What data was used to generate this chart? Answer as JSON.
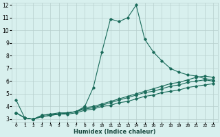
{
  "xlabel": "Humidex (Indice chaleur)",
  "xlim": [
    -0.5,
    23.5
  ],
  "ylim": [
    2.8,
    12.2
  ],
  "yticks": [
    3,
    4,
    5,
    6,
    7,
    8,
    9,
    10,
    11,
    12
  ],
  "xticks": [
    0,
    1,
    2,
    3,
    4,
    5,
    6,
    7,
    8,
    9,
    10,
    11,
    12,
    13,
    14,
    15,
    16,
    17,
    18,
    19,
    20,
    21,
    22,
    23
  ],
  "line_color": "#1a6b5a",
  "bg_color": "#d8f0ee",
  "grid_color": "#b8d0ce",
  "series": [
    {
      "x": [
        0,
        1,
        2,
        3,
        4,
        5,
        6,
        7,
        8,
        9,
        10,
        11,
        12,
        13,
        14,
        15,
        16,
        17,
        18,
        19,
        20,
        21,
        22,
        23
      ],
      "y": [
        4.5,
        3.1,
        3.0,
        3.3,
        3.4,
        3.5,
        3.5,
        3.6,
        4.0,
        5.5,
        8.3,
        10.9,
        10.7,
        11.0,
        12.0,
        9.3,
        8.3,
        7.6,
        7.0,
        6.7,
        6.5,
        6.4,
        6.2,
        6.1
      ]
    },
    {
      "x": [
        0,
        1,
        2,
        3,
        4,
        5,
        6,
        7,
        8,
        9,
        10,
        11,
        12,
        13,
        14,
        15,
        16,
        17,
        18,
        19,
        20,
        21,
        22,
        23
      ],
      "y": [
        3.5,
        3.1,
        3.0,
        3.3,
        3.4,
        3.4,
        3.5,
        3.6,
        3.9,
        4.0,
        4.2,
        4.4,
        4.6,
        4.8,
        5.0,
        5.2,
        5.4,
        5.6,
        5.8,
        5.9,
        6.1,
        6.3,
        6.4,
        6.3
      ]
    },
    {
      "x": [
        0,
        1,
        2,
        3,
        4,
        5,
        6,
        7,
        8,
        9,
        10,
        11,
        12,
        13,
        14,
        15,
        16,
        17,
        18,
        19,
        20,
        21,
        22,
        23
      ],
      "y": [
        3.5,
        3.1,
        3.0,
        3.2,
        3.3,
        3.4,
        3.5,
        3.6,
        3.8,
        3.9,
        4.1,
        4.3,
        4.5,
        4.7,
        4.9,
        5.1,
        5.2,
        5.4,
        5.6,
        5.7,
        5.9,
        6.0,
        6.1,
        6.0
      ]
    },
    {
      "x": [
        0,
        1,
        2,
        3,
        4,
        5,
        6,
        7,
        8,
        9,
        10,
        11,
        12,
        13,
        14,
        15,
        16,
        17,
        18,
        19,
        20,
        21,
        22,
        23
      ],
      "y": [
        3.5,
        3.1,
        3.0,
        3.2,
        3.3,
        3.4,
        3.4,
        3.5,
        3.7,
        3.8,
        4.0,
        4.1,
        4.3,
        4.4,
        4.6,
        4.8,
        4.9,
        5.1,
        5.2,
        5.3,
        5.5,
        5.6,
        5.7,
        5.8
      ]
    }
  ]
}
